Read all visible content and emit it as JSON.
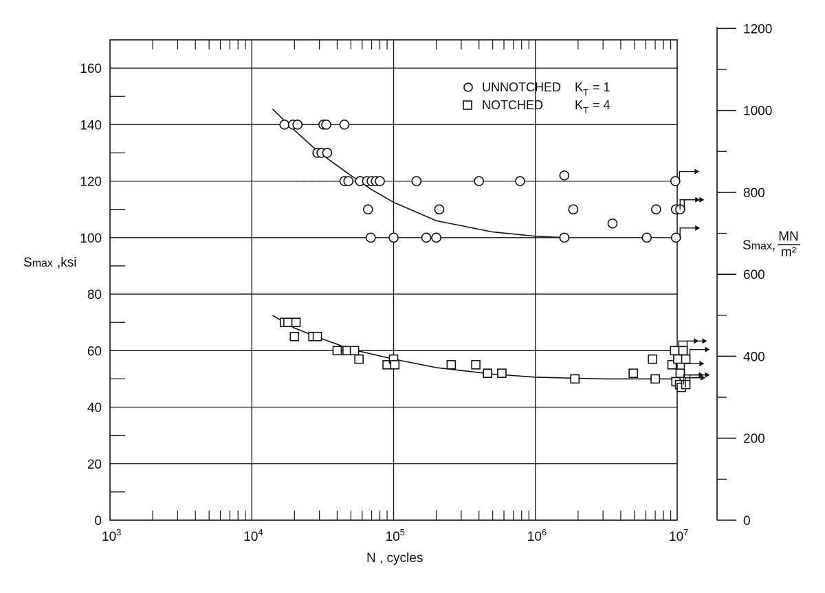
{
  "chart_data": {
    "type": "scatter",
    "title": "",
    "xlabel": "N , cycles",
    "ylabel_left": "S",
    "ylabel_left_sub": "max",
    "ylabel_left_unit": ",ksi",
    "ylabel_right": "S",
    "ylabel_right_sub": "max",
    "ylabel_right_unit_num": "MN",
    "ylabel_right_unit_den": "m²",
    "x_scale": "log",
    "xlim": [
      1000,
      10000000
    ],
    "ylim": [
      0,
      170
    ],
    "x_ticks": [
      {
        "base": "10",
        "exp": "3",
        "value": 1000
      },
      {
        "base": "10",
        "exp": "4",
        "value": 10000
      },
      {
        "base": "10",
        "exp": "5",
        "value": 100000
      },
      {
        "base": "10",
        "exp": "6",
        "value": 1000000
      },
      {
        "base": "10",
        "exp": "7",
        "value": 10000000
      }
    ],
    "y_ticks_left": [
      "0",
      "20",
      "40",
      "60",
      "80",
      "100",
      "120",
      "140",
      "160"
    ],
    "y_ticks_right": [
      "0",
      "200",
      "400",
      "600",
      "800",
      "1000",
      "1200"
    ],
    "grid": true,
    "legend_position": "top-right",
    "legend": [
      {
        "marker": "circle",
        "label": "UNNOTCHED",
        "k_base": "K",
        "k_sub": "T",
        "k_eq": "= 1"
      },
      {
        "marker": "square",
        "label": "NOTCHED",
        "k_base": "K",
        "k_sub": "T",
        "k_eq": "= 4"
      }
    ],
    "series": [
      {
        "marker": "circle",
        "points": [
          [
            17000,
            140
          ],
          [
            19500,
            140
          ],
          [
            21000,
            140
          ],
          [
            32000,
            140
          ],
          [
            33500,
            140
          ],
          [
            45000,
            140
          ],
          [
            29000,
            130
          ],
          [
            31000,
            130
          ],
          [
            34000,
            130
          ],
          [
            45000,
            120
          ],
          [
            48000,
            120
          ],
          [
            58000,
            120
          ],
          [
            65000,
            120
          ],
          [
            70000,
            120
          ],
          [
            75000,
            120
          ],
          [
            80000,
            120
          ],
          [
            145000,
            120
          ],
          [
            400000,
            120
          ],
          [
            780000,
            120
          ],
          [
            1600000,
            122
          ],
          [
            9700000,
            120
          ],
          [
            66000,
            110
          ],
          [
            210000,
            110
          ],
          [
            1850000,
            110
          ],
          [
            7100000,
            110
          ],
          [
            9800000,
            110
          ],
          [
            10500000,
            110
          ],
          [
            3500000,
            105
          ],
          [
            69000,
            100
          ],
          [
            100000,
            100
          ],
          [
            170000,
            100
          ],
          [
            200000,
            100
          ],
          [
            1600000,
            100
          ],
          [
            6100000,
            100
          ],
          [
            9800000,
            100
          ]
        ],
        "runouts": [
          [
            9700000,
            120
          ],
          [
            9800000,
            110
          ],
          [
            10500000,
            110
          ],
          [
            9800000,
            100
          ]
        ],
        "fit_curve": [
          [
            14000,
            145.5
          ],
          [
            20000,
            138
          ],
          [
            30000,
            130
          ],
          [
            50000,
            122
          ],
          [
            70000,
            117
          ],
          [
            100000,
            112.5
          ],
          [
            200000,
            106
          ],
          [
            500000,
            102
          ],
          [
            1000000,
            100.5
          ],
          [
            1600000,
            100
          ]
        ]
      },
      {
        "marker": "square",
        "points": [
          [
            17000,
            70
          ],
          [
            18000,
            70
          ],
          [
            20500,
            70
          ],
          [
            20000,
            65
          ],
          [
            27000,
            65
          ],
          [
            29000,
            65
          ],
          [
            40000,
            60
          ],
          [
            47000,
            60
          ],
          [
            53000,
            60
          ],
          [
            57000,
            57
          ],
          [
            90000,
            55
          ],
          [
            100000,
            57
          ],
          [
            102000,
            55
          ],
          [
            255000,
            55
          ],
          [
            380000,
            55
          ],
          [
            460000,
            52
          ],
          [
            580000,
            52
          ],
          [
            1900000,
            50
          ],
          [
            4900000,
            52
          ],
          [
            6700000,
            57
          ],
          [
            7000000,
            50
          ],
          [
            9200000,
            55
          ],
          [
            9600000,
            60
          ],
          [
            10100000,
            57
          ],
          [
            10500000,
            52
          ],
          [
            9800000,
            49
          ],
          [
            10400000,
            48
          ],
          [
            11000000,
            60
          ],
          [
            11500000,
            57
          ],
          [
            10700000,
            47
          ],
          [
            11500000,
            48
          ]
        ],
        "runouts": [
          [
            9600000,
            60
          ],
          [
            11000000,
            60
          ],
          [
            11500000,
            57
          ],
          [
            10500000,
            52
          ],
          [
            10400000,
            48
          ],
          [
            10700000,
            47
          ],
          [
            11500000,
            48
          ]
        ],
        "fit_curve": [
          [
            14000,
            72.5
          ],
          [
            20000,
            68
          ],
          [
            30000,
            64.5
          ],
          [
            50000,
            60.5
          ],
          [
            100000,
            57
          ],
          [
            200000,
            54
          ],
          [
            500000,
            51.7
          ],
          [
            1000000,
            50.6
          ],
          [
            3000000,
            50
          ],
          [
            10000000,
            50
          ]
        ]
      }
    ],
    "reference_lines": [
      {
        "y": 120,
        "x_from": 20000,
        "x_to": 45000,
        "style": "dashed"
      },
      {
        "y": 60,
        "x_from": 22000,
        "x_to": 100000,
        "style": "dashed"
      }
    ]
  }
}
